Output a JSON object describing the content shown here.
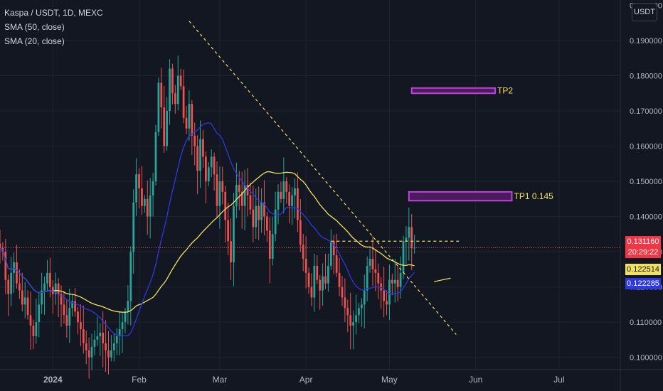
{
  "legend": {
    "symbol": "Kaspa / USDT, 1D, MEXC",
    "sma50": "SMA (50, close)",
    "sma20": "SMA (20, close)"
  },
  "currency_button": "USDT",
  "price_tags": {
    "last_price": "0.131160",
    "countdown": "20:29:22",
    "sma50_value": "0.122514",
    "sma20_value": "0.122285"
  },
  "colors": {
    "background": "#131722",
    "up": "#26a69a",
    "down": "#ef5350",
    "sma50": "#f2e15f",
    "sma20": "#2d38e0",
    "trendline": "#f2e15f",
    "zones": "#c040e0",
    "zone_fill": "#4a1c5a",
    "grid": "#1f2330",
    "axis_text": "#b2b5be"
  },
  "chart_data": {
    "type": "candlestick",
    "title": "Kaspa / USDT, 1D, MEXC",
    "y_ticks": [
      "0.100000",
      "0.110000",
      "0.120000",
      "0.130000",
      "0.140000",
      "0.150000",
      "0.160000",
      "0.170000",
      "0.180000",
      "0.190000"
    ],
    "y_top_partial_tick": "0.200000",
    "x_ticks": [
      {
        "label": "2024",
        "day": 4
      },
      {
        "label": "Feb",
        "day": 35
      },
      {
        "label": "Mar",
        "day": 64
      },
      {
        "label": "Apr",
        "day": 95
      },
      {
        "label": "May",
        "day": 125
      },
      {
        "label": "Jun",
        "day": 156
      },
      {
        "label": "Jul",
        "day": 186
      }
    ],
    "ylim": [
      0.0965,
      0.2015
    ],
    "xlim": [
      -15,
      208
    ],
    "last_price": 0.13116,
    "ohlc_close": [
      0.131,
      0.13,
      0.122,
      0.118,
      0.124,
      0.127,
      0.121,
      0.119,
      0.115,
      0.117,
      0.112,
      0.109,
      0.106,
      0.11,
      0.115,
      0.119,
      0.121,
      0.124,
      0.12,
      0.118,
      0.121,
      0.118,
      0.115,
      0.112,
      0.109,
      0.114,
      0.116,
      0.113,
      0.11,
      0.108,
      0.104,
      0.102,
      0.1,
      0.103,
      0.105,
      0.106,
      0.107,
      0.104,
      0.102,
      0.1,
      0.102,
      0.104,
      0.106,
      0.108,
      0.11,
      0.113,
      0.116,
      0.13,
      0.144,
      0.152,
      0.148,
      0.143,
      0.145,
      0.14,
      0.146,
      0.15,
      0.164,
      0.178,
      0.171,
      0.16,
      0.17,
      0.182,
      0.175,
      0.172,
      0.18,
      0.177,
      0.168,
      0.165,
      0.172,
      0.163,
      0.16,
      0.153,
      0.162,
      0.157,
      0.15,
      0.154,
      0.157,
      0.152,
      0.143,
      0.15,
      0.147,
      0.139,
      0.133,
      0.127,
      0.143,
      0.149,
      0.147,
      0.143,
      0.149,
      0.146,
      0.142,
      0.137,
      0.143,
      0.139,
      0.144,
      0.14,
      0.136,
      0.128,
      0.135,
      0.142,
      0.147,
      0.145,
      0.15,
      0.147,
      0.143,
      0.146,
      0.148,
      0.139,
      0.132,
      0.128,
      0.124,
      0.12,
      0.117,
      0.126,
      0.122,
      0.119,
      0.123,
      0.121,
      0.126,
      0.133,
      0.129,
      0.124,
      0.12,
      0.117,
      0.114,
      0.112,
      0.109,
      0.11,
      0.112,
      0.114,
      0.115,
      0.119,
      0.126,
      0.128,
      0.125,
      0.124,
      0.121,
      0.119,
      0.116,
      0.115,
      0.122,
      0.121,
      0.122,
      0.12,
      0.124,
      0.133,
      0.134,
      0.137,
      0.131,
      0.13116
    ],
    "sma50": {
      "name": "SMA (50, close)",
      "color": "#f2e15f",
      "value": 0.122514
    },
    "sma20": {
      "name": "SMA (20, close)",
      "color": "#2d38e0",
      "value": 0.122285
    },
    "annotations": [
      {
        "type": "zone",
        "label": "TP2",
        "y_low": 0.175,
        "y_high": 0.1765,
        "x_start": 133,
        "x_end": 163
      },
      {
        "type": "zone",
        "label": "TP1 0.145",
        "y_low": 0.1445,
        "y_high": 0.147,
        "x_start": 132,
        "x_end": 169
      },
      {
        "type": "trendline",
        "style": "dashed",
        "x1": 53,
        "y1": 0.1955,
        "x2": 149,
        "y2": 0.1065
      },
      {
        "type": "trendline",
        "style": "dashed",
        "x1": 104,
        "y1": 0.133,
        "x2": 150,
        "y2": 0.133
      },
      {
        "type": "trendline",
        "style": "solid",
        "x1": 141,
        "y1": 0.1215,
        "x2": 147,
        "y2": 0.1225
      }
    ],
    "grid": false,
    "legend_position": "top-left"
  }
}
